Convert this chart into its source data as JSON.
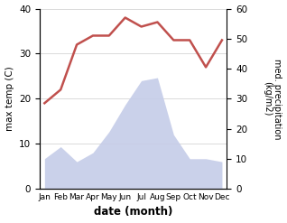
{
  "months": [
    "Jan",
    "Feb",
    "Mar",
    "Apr",
    "May",
    "Jun",
    "Jul",
    "Aug",
    "Sep",
    "Oct",
    "Nov",
    "Dec"
  ],
  "temperature": [
    19,
    22,
    32,
    34,
    34,
    38,
    36,
    37,
    33,
    33,
    27,
    33
  ],
  "precipitation": [
    10,
    14,
    9,
    12,
    19,
    28,
    36,
    37,
    18,
    10,
    10,
    9
  ],
  "temp_color": "#c0504d",
  "precip_color_fill": "#c5cce8",
  "title": "",
  "xlabel": "date (month)",
  "ylabel_left": "max temp (C)",
  "ylabel_right": "med. precipitation\n(kg/m2)",
  "ylim_left": [
    0,
    40
  ],
  "ylim_right": [
    0,
    60
  ],
  "yticks_left": [
    0,
    10,
    20,
    30,
    40
  ],
  "yticks_right": [
    0,
    10,
    20,
    30,
    40,
    50,
    60
  ],
  "background_color": "#ffffff"
}
